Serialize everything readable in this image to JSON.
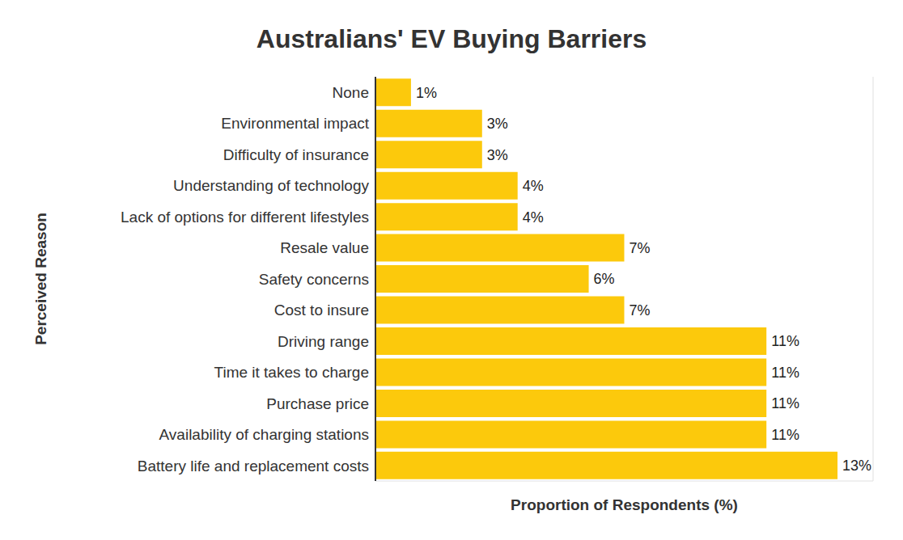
{
  "chart_data": {
    "type": "bar",
    "title": "Australians' EV Buying Barriers",
    "orientation": "horizontal",
    "x_label": "Proportion of Respondents (%)",
    "y_label": "Perceived Reason",
    "categories": [
      "None",
      "Environmental impact",
      "Difficulty of insurance",
      "Understanding of technology",
      "Lack of options for different lifestyles",
      "Resale value",
      "Safety concerns",
      "Cost to insure",
      "Driving range",
      "Time it takes to charge",
      "Purchase price",
      "Availability of charging stations",
      "Battery life and replacement costs"
    ],
    "values": [
      1,
      3,
      3,
      4,
      4,
      7,
      6,
      7,
      11,
      11,
      11,
      11,
      13
    ],
    "value_labels": [
      "1%",
      "3%",
      "3%",
      "4%",
      "4%",
      "7%",
      "6%",
      "7%",
      "11%",
      "11%",
      "11%",
      "11%",
      "13%"
    ],
    "color": "#fcc90c",
    "xlim": [
      0,
      14
    ],
    "xticks": [
      0,
      2,
      4,
      6,
      8,
      10,
      12,
      14
    ],
    "grid": true,
    "data_labels": true,
    "tick_labels": "y"
  }
}
